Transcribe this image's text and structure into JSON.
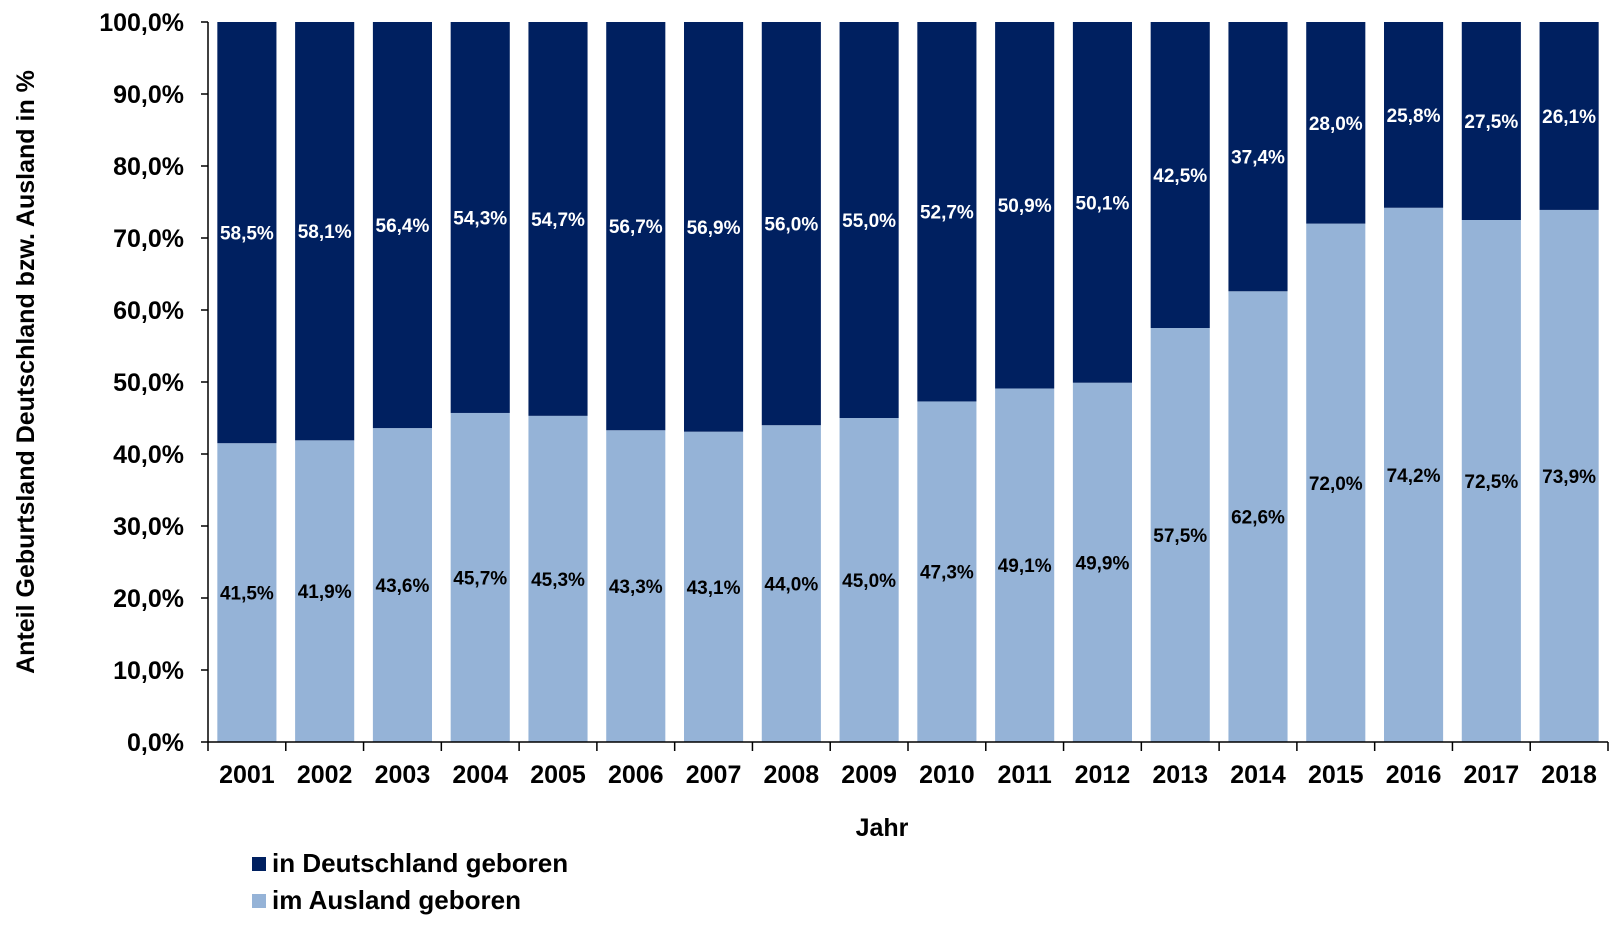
{
  "chart_data": {
    "type": "bar",
    "stacked": true,
    "xlabel": "Jahr",
    "ylabel": "Anteil Geburtsland Deutschland bzw. Ausland in %",
    "ylim": [
      0,
      100
    ],
    "yticks": [
      "0,0%",
      "10,0%",
      "20,0%",
      "30,0%",
      "40,0%",
      "50,0%",
      "60,0%",
      "70,0%",
      "80,0%",
      "90,0%",
      "100,0%"
    ],
    "categories": [
      "2001",
      "2002",
      "2003",
      "2004",
      "2005",
      "2006",
      "2007",
      "2008",
      "2009",
      "2010",
      "2011",
      "2012",
      "2013",
      "2014",
      "2015",
      "2016",
      "2017",
      "2018"
    ],
    "series": [
      {
        "name": "im Ausland geboren",
        "color": "#95b3d7",
        "values": [
          41.5,
          41.9,
          43.6,
          45.7,
          45.3,
          43.3,
          43.1,
          44.0,
          45.0,
          47.3,
          49.1,
          49.9,
          57.5,
          62.6,
          72.0,
          74.2,
          72.5,
          73.9
        ],
        "labels": [
          "41,5%",
          "41,9%",
          "43,6%",
          "45,7%",
          "45,3%",
          "43,3%",
          "43,1%",
          "44,0%",
          "45,0%",
          "47,3%",
          "49,1%",
          "49,9%",
          "57,5%",
          "62,6%",
          "72,0%",
          "74,2%",
          "72,5%",
          "73,9%"
        ]
      },
      {
        "name": "in Deutschland geboren",
        "color": "#002060",
        "values": [
          58.5,
          58.1,
          56.4,
          54.3,
          54.7,
          56.7,
          56.9,
          56.0,
          55.0,
          52.7,
          50.9,
          50.1,
          42.5,
          37.4,
          28.0,
          25.8,
          27.5,
          26.1
        ],
        "labels": [
          "58,5%",
          "58,1%",
          "56,4%",
          "54,3%",
          "54,7%",
          "56,7%",
          "56,9%",
          "56,0%",
          "55,0%",
          "52,7%",
          "50,9%",
          "50,1%",
          "42,5%",
          "37,4%",
          "28,0%",
          "25,8%",
          "27,5%",
          "26,1%"
        ]
      }
    ],
    "legend": {
      "placement": "bottom-left",
      "items": [
        {
          "label": "in Deutschland geboren",
          "color": "#002060"
        },
        {
          "label": "im Ausland geboren",
          "color": "#95b3d7"
        }
      ]
    },
    "grid": false
  }
}
